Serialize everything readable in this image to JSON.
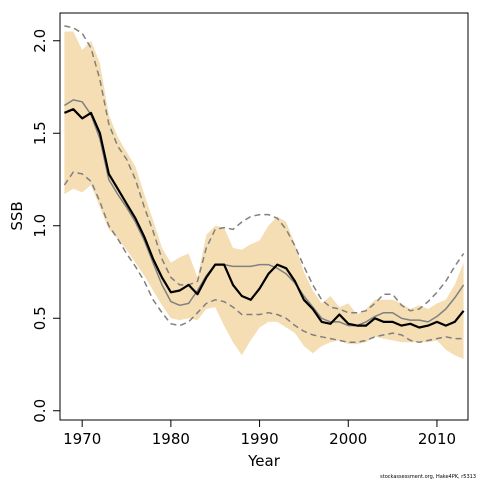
{
  "chart_data": {
    "type": "line",
    "xlabel": "Year",
    "ylabel": "SSB",
    "xlim": [
      1967.5,
      2013.5
    ],
    "ylim": [
      -0.05,
      2.15
    ],
    "xticks": [
      1970,
      1980,
      1990,
      2000,
      2010
    ],
    "xtick_labels": [
      "1970",
      "1980",
      "1990",
      "2000",
      "2010"
    ],
    "yticks": [
      0.0,
      0.5,
      1.0,
      1.5,
      2.0
    ],
    "ytick_labels": [
      "0.0",
      "0.5",
      "1.0",
      "1.5",
      "2.0"
    ],
    "grid": false,
    "legend": "none",
    "source_note": "stockassessment.org, Hake4PK, r5313",
    "colors": {
      "band": "#f5deb3",
      "median": "#000000",
      "reference": "#808080",
      "interval": "#808080"
    },
    "band": {
      "x": [
        1968,
        1969,
        1970,
        1971,
        1972,
        1973,
        1974,
        1975,
        1976,
        1977,
        1978,
        1979,
        1980,
        1981,
        1982,
        1983,
        1984,
        1985,
        1986,
        1987,
        1988,
        1989,
        1990,
        1991,
        1992,
        1993,
        1994,
        1995,
        1996,
        1997,
        1998,
        1999,
        2000,
        2001,
        2002,
        2003,
        2004,
        2005,
        2006,
        2007,
        2008,
        2009,
        2010,
        2011,
        2012,
        2013
      ],
      "lower": [
        1.17,
        1.2,
        1.18,
        1.22,
        1.1,
        0.98,
        0.93,
        0.87,
        0.8,
        0.73,
        0.65,
        0.57,
        0.5,
        0.49,
        0.5,
        0.49,
        0.55,
        0.56,
        0.46,
        0.37,
        0.3,
        0.38,
        0.45,
        0.48,
        0.48,
        0.45,
        0.42,
        0.35,
        0.31,
        0.35,
        0.37,
        0.38,
        0.36,
        0.36,
        0.37,
        0.4,
        0.39,
        0.38,
        0.37,
        0.37,
        0.37,
        0.37,
        0.38,
        0.33,
        0.3,
        0.28
      ],
      "upper": [
        2.05,
        2.05,
        1.95,
        2.0,
        1.88,
        1.6,
        1.48,
        1.4,
        1.32,
        1.17,
        1.03,
        0.88,
        0.8,
        0.83,
        0.85,
        0.72,
        0.95,
        1.0,
        0.99,
        0.88,
        0.87,
        0.9,
        0.92,
        1.0,
        1.05,
        1.02,
        0.9,
        0.75,
        0.65,
        0.58,
        0.62,
        0.56,
        0.58,
        0.52,
        0.55,
        0.6,
        0.6,
        0.6,
        0.58,
        0.55,
        0.57,
        0.55,
        0.58,
        0.6,
        0.68,
        0.8
      ]
    },
    "series": [
      {
        "values": [
          1.61,
          1.63,
          1.58,
          1.61,
          1.5,
          1.28,
          1.2,
          1.12,
          1.04,
          0.94,
          0.82,
          0.72,
          0.64,
          0.65,
          0.68,
          0.63,
          0.72,
          0.79,
          0.79,
          0.68,
          0.62,
          0.6,
          0.66,
          0.74,
          0.79,
          0.77,
          0.7,
          0.6,
          0.55,
          0.48,
          0.47,
          0.52,
          0.47,
          0.46,
          0.46,
          0.5,
          0.48,
          0.48,
          0.46,
          0.47,
          0.45,
          0.46,
          0.48,
          0.46,
          0.48,
          0.54
        ]
      },
      {
        "values": [
          1.65,
          1.68,
          1.67,
          1.6,
          1.47,
          1.25,
          1.17,
          1.1,
          1.02,
          0.92,
          0.8,
          0.68,
          0.59,
          0.57,
          0.58,
          0.65,
          0.73,
          0.79,
          0.79,
          0.78,
          0.78,
          0.78,
          0.79,
          0.79,
          0.77,
          0.74,
          0.69,
          0.62,
          0.56,
          0.5,
          0.48,
          0.48,
          0.46,
          0.46,
          0.48,
          0.51,
          0.53,
          0.53,
          0.5,
          0.49,
          0.49,
          0.48,
          0.51,
          0.55,
          0.61,
          0.68
        ]
      },
      {
        "values": [
          2.08,
          2.07,
          2.04,
          1.96,
          1.79,
          1.55,
          1.43,
          1.36,
          1.25,
          1.1,
          0.97,
          0.82,
          0.72,
          0.68,
          0.68,
          0.7,
          0.88,
          0.98,
          0.99,
          0.98,
          1.02,
          1.05,
          1.06,
          1.06,
          1.04,
          0.98,
          0.89,
          0.78,
          0.68,
          0.6,
          0.56,
          0.55,
          0.53,
          0.53,
          0.54,
          0.58,
          0.63,
          0.63,
          0.57,
          0.54,
          0.55,
          0.59,
          0.64,
          0.7,
          0.78,
          0.85
        ]
      },
      {
        "values": [
          1.22,
          1.29,
          1.28,
          1.24,
          1.13,
          1.0,
          0.93,
          0.85,
          0.78,
          0.7,
          0.6,
          0.53,
          0.47,
          0.46,
          0.48,
          0.53,
          0.58,
          0.6,
          0.59,
          0.56,
          0.52,
          0.52,
          0.52,
          0.53,
          0.52,
          0.5,
          0.46,
          0.43,
          0.41,
          0.4,
          0.39,
          0.38,
          0.37,
          0.37,
          0.38,
          0.4,
          0.41,
          0.42,
          0.41,
          0.38,
          0.37,
          0.38,
          0.39,
          0.4,
          0.39,
          0.39
        ]
      }
    ]
  }
}
